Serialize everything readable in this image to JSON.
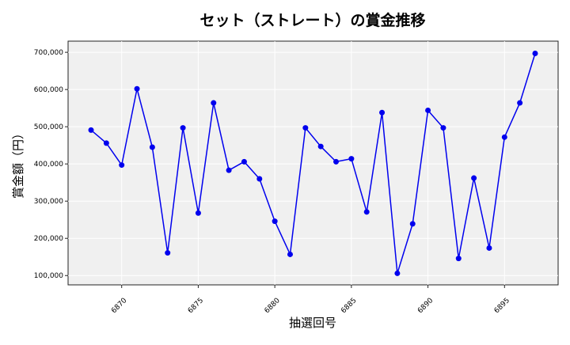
{
  "chart_data": {
    "type": "line",
    "title": "セット（ストレート）の賞金推移",
    "xlabel": "抽選回号",
    "ylabel": "賞金額（円）",
    "xlim": [
      6866.5,
      6898.5
    ],
    "ylim": [
      75000,
      730000
    ],
    "xticks": [
      6870,
      6875,
      6880,
      6885,
      6890,
      6895
    ],
    "xtick_labels": [
      "6870",
      "6875",
      "6880",
      "6885",
      "6890",
      "6895"
    ],
    "yticks": [
      100000,
      200000,
      300000,
      400000,
      500000,
      600000,
      700000
    ],
    "ytick_labels": [
      "100,000",
      "200,000",
      "300,000",
      "400,000",
      "500,000",
      "600,000",
      "700,000"
    ],
    "grid": true,
    "colors": {
      "line": "#0000ee",
      "background": "#f0f0f0",
      "grid": "#ffffff"
    },
    "x": [
      6868,
      6869,
      6870,
      6871,
      6872,
      6873,
      6874,
      6875,
      6876,
      6877,
      6878,
      6879,
      6880,
      6881,
      6882,
      6883,
      6884,
      6885,
      6886,
      6887,
      6888,
      6889,
      6890,
      6891,
      6892,
      6893,
      6894,
      6895,
      6896,
      6897
    ],
    "y": [
      491000,
      456000,
      397000,
      602000,
      445000,
      161000,
      497000,
      268000,
      564000,
      383000,
      406000,
      360000,
      246000,
      157000,
      497000,
      447000,
      406000,
      414000,
      271000,
      538000,
      106000,
      239000,
      544000,
      497000,
      146000,
      362000,
      174000,
      472000,
      564000,
      697000
    ]
  }
}
